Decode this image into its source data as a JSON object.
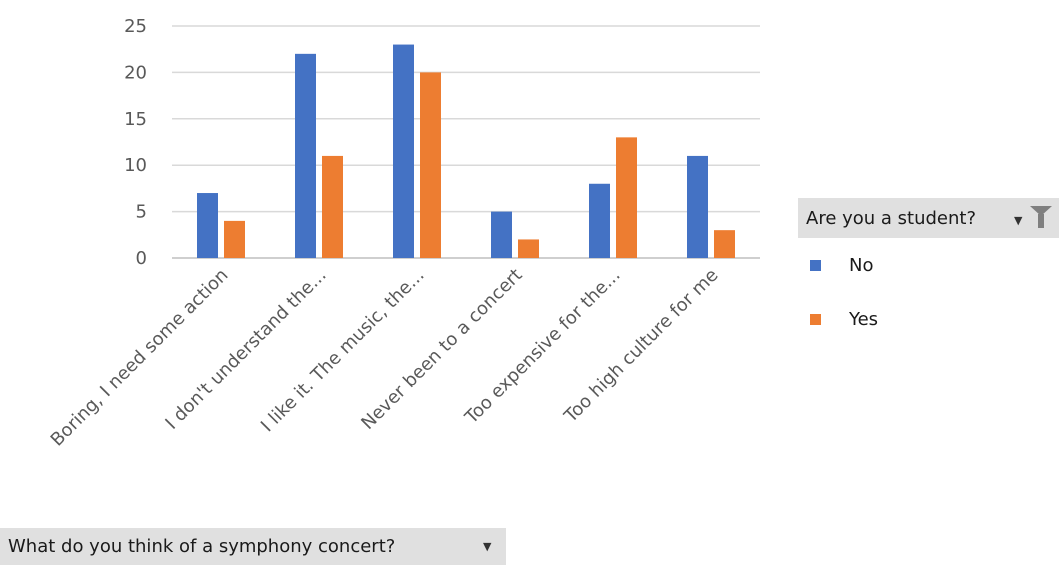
{
  "chart_data": {
    "type": "bar",
    "categories": [
      "Boring, I need some action",
      "I don't understand the...",
      "I like it. The music, the...",
      "Never been to a concert",
      "Too expensive for the...",
      "Too high culture for me"
    ],
    "series": [
      {
        "name": "No",
        "color": "#4472C4",
        "values": [
          7,
          22,
          23,
          5,
          8,
          11
        ]
      },
      {
        "name": "Yes",
        "color": "#ED7D31",
        "values": [
          4,
          11,
          20,
          2,
          13,
          3
        ]
      }
    ],
    "yticks": [
      "0",
      "5",
      "10",
      "15",
      "20",
      "25"
    ],
    "ylim": [
      0,
      25
    ],
    "grid": true,
    "legend_position": "right"
  },
  "legend_filter": {
    "label": "Are you a student?"
  },
  "axis_filter": {
    "label": "What do you think of a symphony concert?"
  }
}
